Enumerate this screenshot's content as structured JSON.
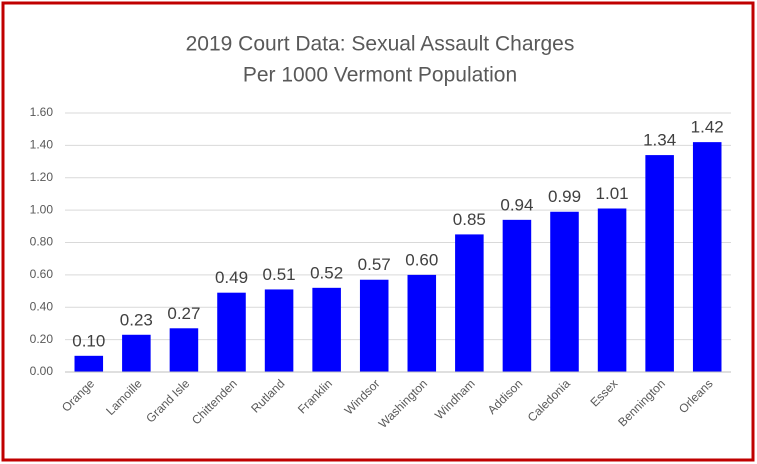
{
  "chart_data": {
    "type": "bar",
    "title": [
      "2019 Court Data: Sexual Assault Charges",
      "Per 1000 Vermont Population"
    ],
    "categories": [
      "Orange",
      "Lamoille",
      "Grand Isle",
      "Chittenden",
      "Rutland",
      "Franklin",
      "Windsor",
      "Washington",
      "Windham",
      "Addison",
      "Caledonia",
      "Essex",
      "Bennington",
      "Orleans"
    ],
    "values": [
      0.1,
      0.23,
      0.27,
      0.49,
      0.51,
      0.52,
      0.57,
      0.6,
      0.85,
      0.94,
      0.99,
      1.01,
      1.34,
      1.42
    ],
    "value_labels": [
      "0.10",
      "0.23",
      "0.27",
      "0.49",
      "0.51",
      "0.52",
      "0.57",
      "0.60",
      "0.85",
      "0.94",
      "0.99",
      "1.01",
      "1.34",
      "1.42"
    ],
    "color": "#0000ff",
    "ylim": [
      0,
      1.6
    ],
    "yticks": [
      {
        "value": 0,
        "label": "0.00"
      },
      {
        "value": 0.2,
        "label": "0.20"
      },
      {
        "value": 0.4,
        "label": "0.40"
      },
      {
        "value": 0.6,
        "label": "0.60"
      },
      {
        "value": 0.8,
        "label": "0.80"
      },
      {
        "value": 1.0,
        "label": "1.00"
      },
      {
        "value": 1.2,
        "label": "1.20"
      },
      {
        "value": 1.4,
        "label": "1.40"
      },
      {
        "value": 1.6,
        "label": "1.60"
      }
    ],
    "grid": true
  }
}
